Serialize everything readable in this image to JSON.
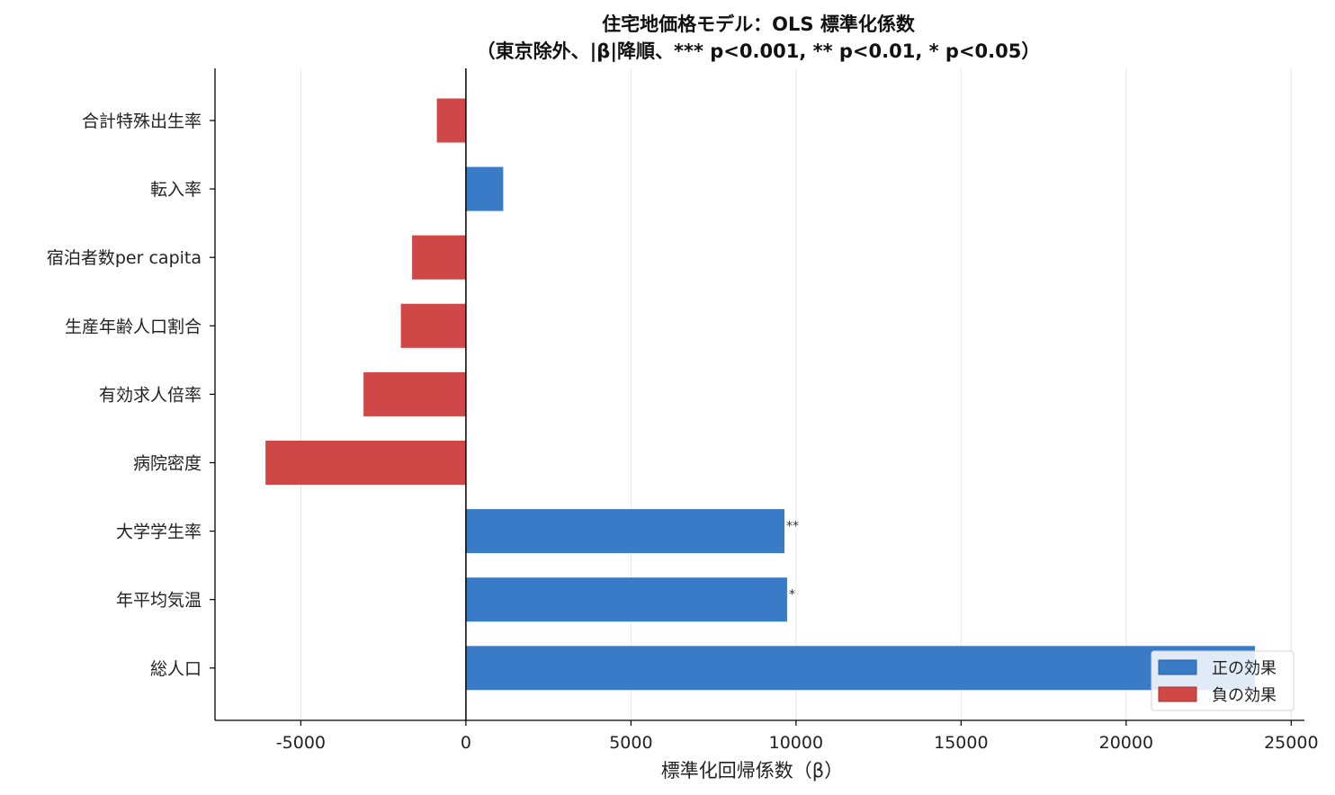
{
  "chart_data": {
    "type": "bar",
    "orientation": "horizontal",
    "title_line1": "住宅地価格モデル：OLS 標準化係数",
    "title_line2": "（東京除外、|β|降順、*** p<0.001, ** p<0.01, * p<0.05）",
    "xlabel": "標準化回帰係数（β）",
    "ylabel": "",
    "xlim": [
      -7600,
      25400
    ],
    "xticks": [
      -5000,
      0,
      5000,
      10000,
      15000,
      20000,
      25000
    ],
    "xtick_labels": [
      "-5000",
      "0",
      "5000",
      "10000",
      "15000",
      "20000",
      "25000"
    ],
    "grid": "vertical",
    "categories": [
      "合計特殊出生率",
      "転入率",
      "宿泊者数per capita",
      "生産年齢人口割合",
      "有効求人倍率",
      "病院密度",
      "大学学生率",
      "年平均気温",
      "総人口"
    ],
    "values": [
      -880,
      1130,
      -1630,
      -1970,
      -3100,
      -6070,
      9650,
      9730,
      23900
    ],
    "significance": [
      "",
      "",
      "",
      "",
      "",
      "",
      "**",
      "*",
      ""
    ],
    "legend": {
      "position": "lower-right",
      "entries": [
        {
          "label": "正の効果",
          "color": "#3a7bc8"
        },
        {
          "label": "負の効果",
          "color": "#cf4747"
        }
      ]
    },
    "colors": {
      "positive": "#3a7bc8",
      "negative": "#cf4747"
    }
  }
}
